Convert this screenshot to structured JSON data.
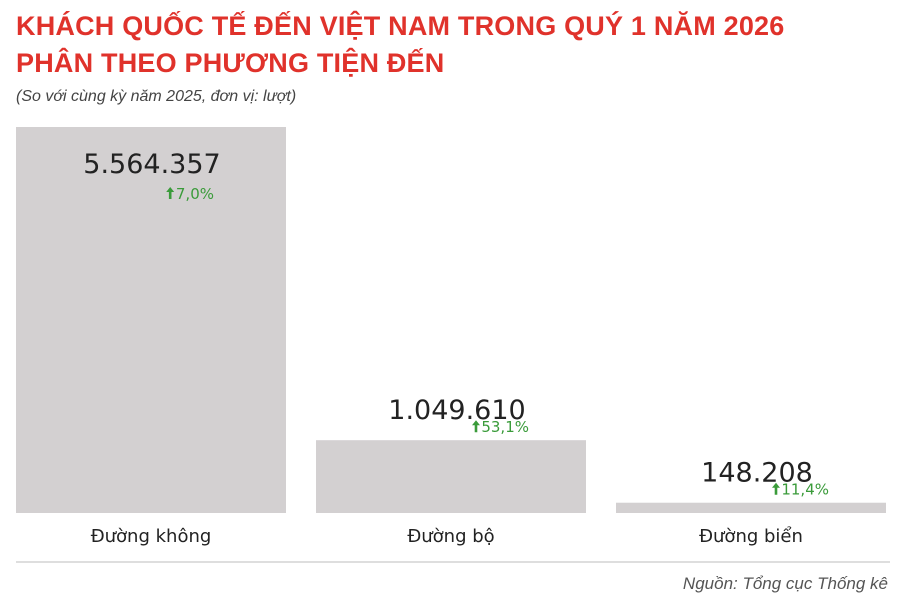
{
  "title_line1": "KHÁCH QUỐC TẾ ĐẾN VIỆT NAM TRONG QUÝ 1 NĂM 2026",
  "title_line2": "PHÂN THEO PHƯƠNG TIỆN ĐẾN",
  "subtitle": "(So với cùng kỳ năm 2025, đơn vị: lượt)",
  "source": "Nguồn: Tổng cục Thống kê",
  "colors": {
    "title": "#e0322b",
    "bar": "#d3d0d1",
    "growth": "#3a9b3a",
    "baseline": "#bdbdbd"
  },
  "chart_data": {
    "type": "bar",
    "categories": [
      "Đường không",
      "Đường bộ",
      "Đường biển"
    ],
    "values": [
      5564357,
      1049610,
      148208
    ],
    "value_labels": [
      "5.564.357",
      "1.049.610",
      "148.208"
    ],
    "growth_labels": [
      "7,0%",
      "53,1%",
      "11,4%"
    ],
    "growth_icon": "arrow-up-icon",
    "title": "KHÁCH QUỐC TẾ ĐẾN VIỆT NAM TRONG QUÝ 1 NĂM 2026 PHÂN THEO PHƯƠNG TIỆN ĐẾN",
    "xlabel": "",
    "ylabel": "",
    "ylim": [
      0,
      5564357
    ],
    "grid": false,
    "legend": "none"
  }
}
